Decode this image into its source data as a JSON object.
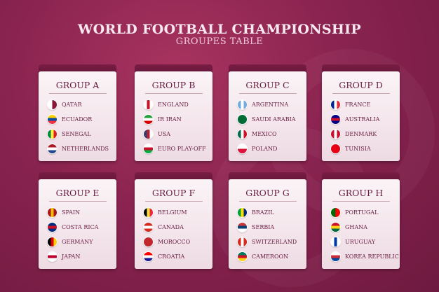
{
  "title": "WORLD FOOTBALL CHAMPIONSHIP",
  "subtitle": "GROUPES TABLE",
  "colors": {
    "background": "#8a2350",
    "card_tab": "#6e1a40",
    "text": "#6a1b3f"
  },
  "groups": [
    {
      "name": "GROUP A",
      "teams": [
        {
          "name": "QATAR",
          "flag": [
            "#fff",
            "#8a1538"
          ]
        },
        {
          "name": "ECUADOR",
          "flag": [
            "#ffd100",
            "#034ea2",
            "#ef3340"
          ]
        },
        {
          "name": "SENEGAL",
          "flag": [
            "#00853f",
            "#fdef42",
            "#e31b23"
          ]
        },
        {
          "name": "NETHERLANDS",
          "flag": [
            "#ae1c28",
            "#fff",
            "#21468b"
          ]
        }
      ]
    },
    {
      "name": "GROUP B",
      "teams": [
        {
          "name": "ENGLAND",
          "flag": [
            "#fff",
            "#ce1124",
            "#fff"
          ]
        },
        {
          "name": "IR IRAN",
          "flag": [
            "#239f40",
            "#fff",
            "#da0000"
          ]
        },
        {
          "name": "USA",
          "flag": [
            "#3c3b6e",
            "#b22234",
            "#fff"
          ]
        },
        {
          "name": "EURO PLAY-OFF",
          "flag": [
            "#fff",
            "#c8102e",
            "#00b140"
          ]
        }
      ]
    },
    {
      "name": "GROUP C",
      "teams": [
        {
          "name": "ARGENTINA",
          "flag": [
            "#74acdf",
            "#fff",
            "#74acdf"
          ]
        },
        {
          "name": "SAUDI ARABIA",
          "flag": [
            "#006c35",
            "#006c35"
          ]
        },
        {
          "name": "MEXICO",
          "flag": [
            "#006847",
            "#fff",
            "#ce1126"
          ]
        },
        {
          "name": "POLAND",
          "flag": [
            "#fff",
            "#dc143c"
          ]
        }
      ]
    },
    {
      "name": "GROUP D",
      "teams": [
        {
          "name": "FRANCE",
          "flag": [
            "#002395",
            "#fff",
            "#ed2939"
          ]
        },
        {
          "name": "AUSTRALIA",
          "flag": [
            "#00008b",
            "#c8102e",
            "#00008b"
          ]
        },
        {
          "name": "DENMARK",
          "flag": [
            "#c8102e",
            "#fff",
            "#c8102e"
          ]
        },
        {
          "name": "TUNISIA",
          "flag": [
            "#e70013",
            "#e70013"
          ]
        }
      ]
    },
    {
      "name": "GROUP E",
      "teams": [
        {
          "name": "SPAIN",
          "flag": [
            "#aa151b",
            "#f1bf00",
            "#aa151b"
          ]
        },
        {
          "name": "COSTA RICA",
          "flag": [
            "#002b7f",
            "#ce1126",
            "#002b7f"
          ]
        },
        {
          "name": "GERMANY",
          "flag": [
            "#000",
            "#dd0000",
            "#ffce00"
          ]
        },
        {
          "name": "JAPAN",
          "flag": [
            "#fff",
            "#bc002d",
            "#fff"
          ]
        }
      ]
    },
    {
      "name": "GROUP F",
      "teams": [
        {
          "name": "BELGIUM",
          "flag": [
            "#000",
            "#fae042",
            "#ed2939"
          ]
        },
        {
          "name": "CANADA",
          "flag": [
            "#d52b1e",
            "#fff",
            "#d52b1e"
          ]
        },
        {
          "name": "MOROCCO",
          "flag": [
            "#c1272d",
            "#c1272d"
          ]
        },
        {
          "name": "CROATIA",
          "flag": [
            "#ff0000",
            "#fff",
            "#171796"
          ]
        }
      ]
    },
    {
      "name": "GROUP G",
      "teams": [
        {
          "name": "BRAZIL",
          "flag": [
            "#009c3b",
            "#ffdf00",
            "#002776"
          ]
        },
        {
          "name": "SERBIA",
          "flag": [
            "#c6363c",
            "#0c4076",
            "#fff"
          ]
        },
        {
          "name": "SWITZERLAND",
          "flag": [
            "#d52b1e",
            "#fff",
            "#d52b1e"
          ]
        },
        {
          "name": "CAMEROON",
          "flag": [
            "#007a5e",
            "#ce1126",
            "#fcd116"
          ]
        }
      ]
    },
    {
      "name": "GROUP H",
      "teams": [
        {
          "name": "PORTUGAL",
          "flag": [
            "#006600",
            "#ff0000"
          ]
        },
        {
          "name": "GHANA",
          "flag": [
            "#ce1126",
            "#fcd116",
            "#006b3f"
          ]
        },
        {
          "name": "URUGUAY",
          "flag": [
            "#fff",
            "#0038a8",
            "#fff"
          ]
        },
        {
          "name": "KOREA REPUBLIC",
          "flag": [
            "#fff",
            "#cd2e3a",
            "#0047a0"
          ]
        }
      ]
    }
  ]
}
